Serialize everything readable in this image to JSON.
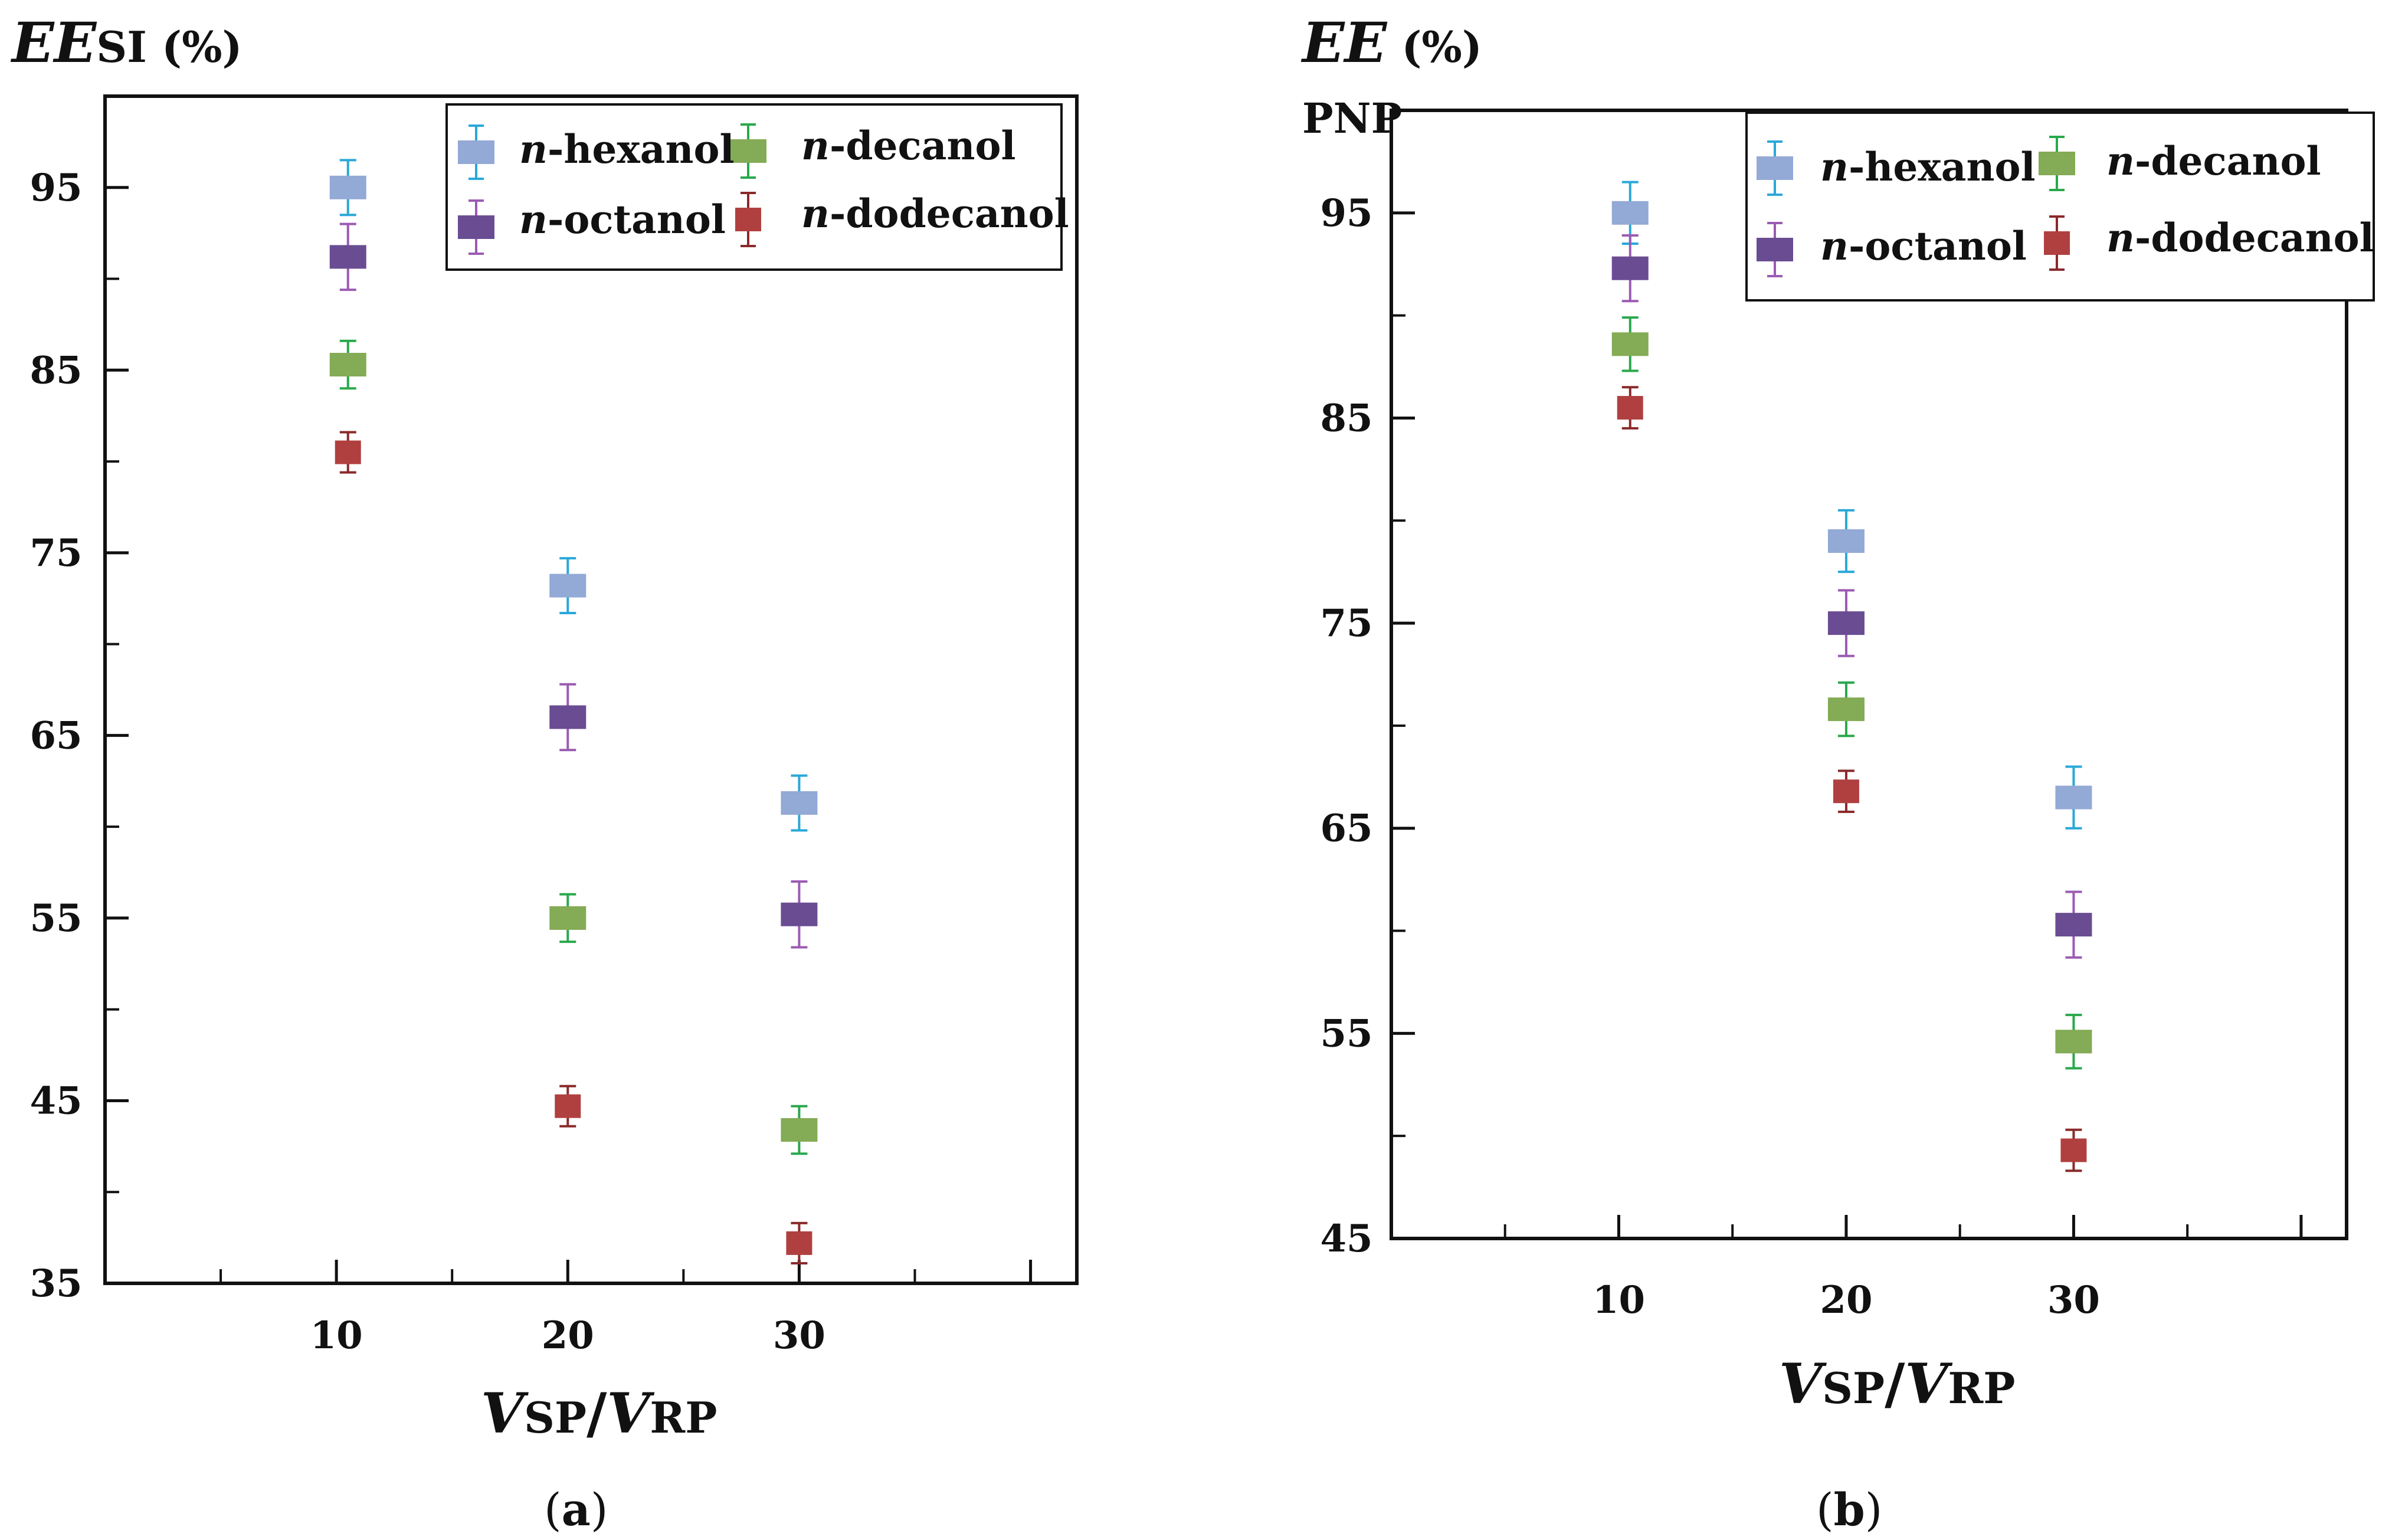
{
  "figure": {
    "panel_a_caption": {
      "open": "(",
      "letter": "a",
      "close": ")"
    },
    "panel_b_caption": {
      "open": "(",
      "letter": "b",
      "close": ")"
    }
  },
  "chart_data": [
    {
      "type": "scatter",
      "panel": "a",
      "ylabel": {
        "main": "EE",
        "sub": "SI",
        "unit": " (%)"
      },
      "xlabel": {
        "v1": "V",
        "sub1": "SP",
        "slash": "/",
        "v2": "V",
        "sub2": "RP"
      },
      "ylim": [
        35,
        100
      ],
      "xlim": [
        0,
        42
      ],
      "y_ticks": [
        "95",
        "85",
        "75",
        "65",
        "55",
        "45",
        "35"
      ],
      "x_ticks": [
        "10",
        "20",
        "30"
      ],
      "categories": [
        10,
        20,
        30
      ],
      "x_offsets": [
        0.5,
        0,
        0
      ],
      "legend_position": "top-right",
      "series": [
        {
          "name": "-hexanol",
          "prefix": "n",
          "color": "#93a9d6",
          "bar_color": "#2aa8d8",
          "values": [
            95,
            73.2,
            61.3
          ],
          "errors": [
            1.5,
            1.5,
            1.5
          ]
        },
        {
          "name": "-octanol",
          "prefix": "n",
          "color": "#6a4c93",
          "bar_color": "#9b5bb3",
          "values": [
            91.2,
            66,
            55.2
          ],
          "errors": [
            1.8,
            1.8,
            1.8
          ]
        },
        {
          "name": "-decanol",
          "prefix": "n",
          "color": "#84ab55",
          "bar_color": "#2aa84c",
          "values": [
            85.3,
            55,
            43.4
          ],
          "errors": [
            1.3,
            1.3,
            1.3
          ]
        },
        {
          "name": "-dodecanol",
          "prefix": "n",
          "color": "#b0403f",
          "bar_color": "#8a2a2a",
          "values": [
            80.5,
            44.7,
            37.2
          ],
          "errors": [
            1.1,
            1.1,
            1.1
          ]
        }
      ]
    },
    {
      "type": "scatter",
      "panel": "b",
      "ylabel": {
        "main": "EE",
        "unit": " (%)",
        "sub": "PNP"
      },
      "xlabel": {
        "v1": "V",
        "sub1": "SP",
        "slash": "/",
        "v2": "V",
        "sub2": "RP"
      },
      "ylim": [
        45,
        100
      ],
      "xlim": [
        0,
        42
      ],
      "y_ticks": [
        "95",
        "85",
        "75",
        "65",
        "55",
        "45"
      ],
      "x_ticks": [
        "10",
        "20",
        "30"
      ],
      "categories": [
        10,
        20,
        30
      ],
      "x_offsets": [
        0.5,
        0,
        0
      ],
      "legend_position": "top-right",
      "series": [
        {
          "name": "-hexanol",
          "prefix": "n",
          "color": "#93a9d6",
          "bar_color": "#2aa8d8",
          "values": [
            95,
            79,
            66.5
          ],
          "errors": [
            1.5,
            1.5,
            1.5
          ]
        },
        {
          "name": "-octanol",
          "prefix": "n",
          "color": "#6a4c93",
          "bar_color": "#9b5bb3",
          "values": [
            92.3,
            75,
            60.3
          ],
          "errors": [
            1.6,
            1.6,
            1.6
          ]
        },
        {
          "name": "-decanol",
          "prefix": "n",
          "color": "#84ab55",
          "bar_color": "#2aa84c",
          "values": [
            88.6,
            70.8,
            54.6
          ],
          "errors": [
            1.3,
            1.3,
            1.3
          ]
        },
        {
          "name": "-dodecanol",
          "prefix": "n",
          "color": "#b0403f",
          "bar_color": "#8a2a2a",
          "values": [
            85.5,
            66.8,
            49.3
          ],
          "errors": [
            1.0,
            1.0,
            1.0
          ]
        }
      ]
    }
  ]
}
